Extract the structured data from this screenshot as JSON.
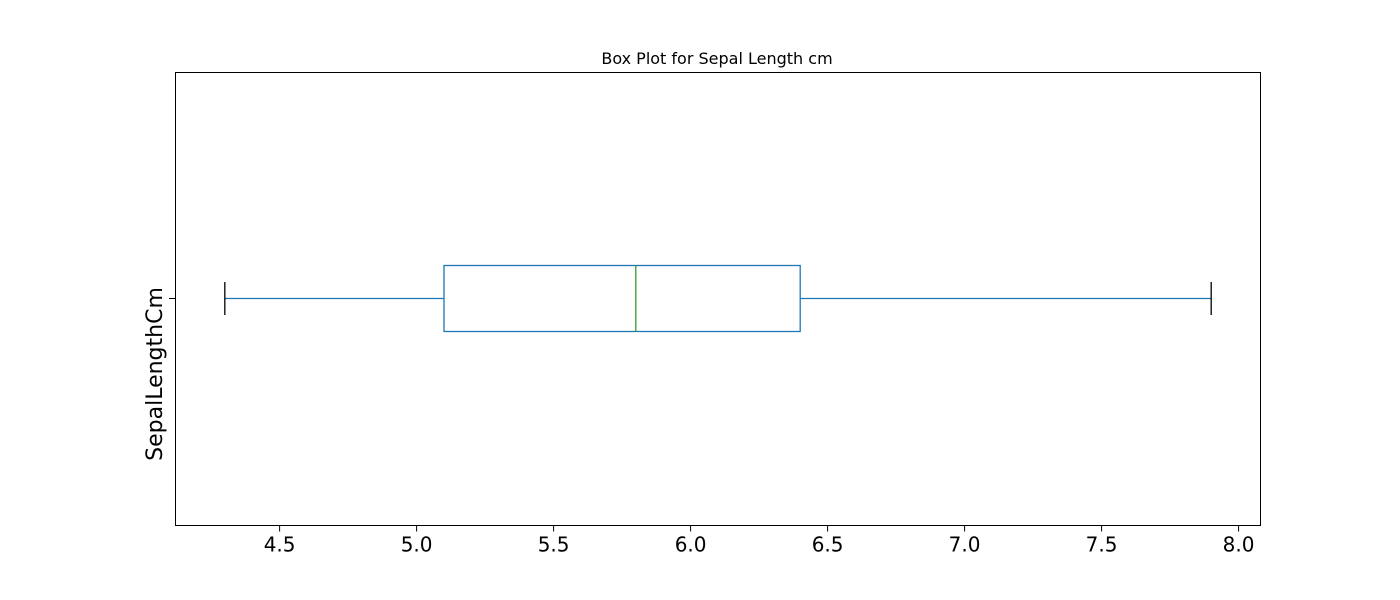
{
  "chart_data": {
    "type": "box",
    "orientation": "horizontal",
    "title": "Box Plot for Sepal Length cm",
    "category_label": "SepalLengthCm",
    "xlim": [
      4.12,
      8.08
    ],
    "xticks": [
      4.5,
      5.0,
      5.5,
      6.0,
      6.5,
      7.0,
      7.5,
      8.0
    ],
    "xtick_labels": [
      "4.5",
      "5.0",
      "5.5",
      "6.0",
      "6.5",
      "7.0",
      "7.5",
      "8.0"
    ],
    "box": {
      "whisker_low": 4.3,
      "q1": 5.1,
      "median": 5.8,
      "q3": 6.4,
      "whisker_high": 7.9
    },
    "colors": {
      "box": "#1f77b4",
      "whisker": "#1f77b4",
      "median": "#2ca02c",
      "cap": "#000000",
      "frame": "#000000"
    },
    "grid": false
  }
}
